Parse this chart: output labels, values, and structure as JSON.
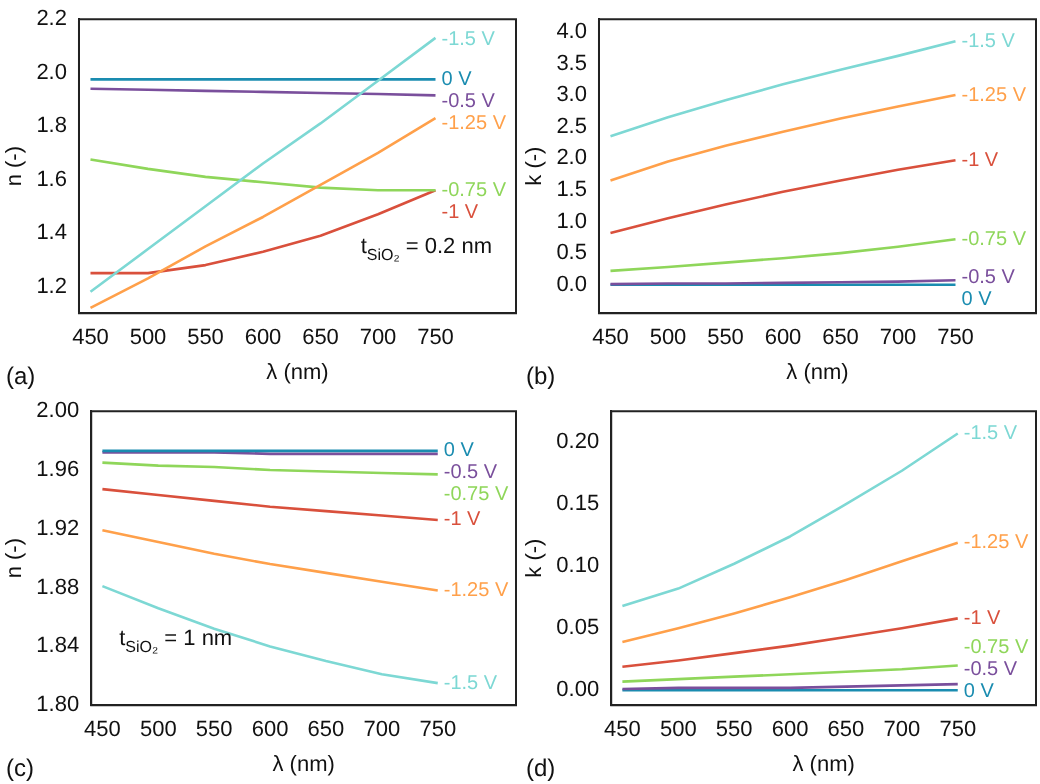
{
  "chart_data": [
    {
      "type": "line",
      "xlabel": "λ (nm)",
      "ylabel": "n (-)",
      "x": [
        450,
        500,
        550,
        600,
        650,
        700,
        750
      ],
      "xlim": [
        440,
        820
      ],
      "xticks": [
        450,
        500,
        550,
        600,
        650,
        700,
        750
      ],
      "ylim": [
        1.1,
        2.2
      ],
      "yticks": [
        1.2,
        1.4,
        1.6,
        1.8,
        {
          "value": 2,
          "label": "2.0"
        },
        2.2
      ],
      "grid": false,
      "legend": false,
      "marker": "none",
      "annotations": [
        "(a)",
        "t$_{SiO₂}$ = 0.2 nm"
      ],
      "series": [
        {
          "name": "-1.5 V",
          "color": "#7dd8d4",
          "values": [
            1.18,
            1.34,
            1.5,
            1.66,
            1.81,
            1.97,
            2.13
          ]
        },
        {
          "name": "0 V",
          "color": "#1a8cb0",
          "values": [
            1.975,
            1.975,
            1.975,
            1.975,
            1.975,
            1.975,
            1.975
          ]
        },
        {
          "name": "-0.5 V",
          "color": "#7a4f9c",
          "values": [
            1.94,
            1.936,
            1.932,
            1.928,
            1.924,
            1.92,
            1.915
          ]
        },
        {
          "name": "-1.25 V",
          "color": "#ffa04a",
          "values": [
            1.12,
            1.23,
            1.35,
            1.46,
            1.58,
            1.7,
            1.83
          ]
        },
        {
          "name": "-0.75 V",
          "color": "#8fd65a",
          "values": [
            1.675,
            1.64,
            1.61,
            1.59,
            1.57,
            1.56,
            1.56
          ]
        },
        {
          "name": "-1 V",
          "color": "#d9503c",
          "values": [
            1.25,
            1.25,
            1.28,
            1.33,
            1.39,
            1.47,
            1.56
          ]
        }
      ]
    },
    {
      "type": "line",
      "xlabel": "λ (nm)",
      "ylabel": "k (-)",
      "x": [
        450,
        500,
        550,
        600,
        650,
        700,
        750
      ],
      "xlim": [
        440,
        820
      ],
      "xticks": [
        450,
        500,
        550,
        600,
        650,
        700,
        750
      ],
      "ylim": [
        -0.45,
        4.2
      ],
      "yticks": [
        {
          "value": 0,
          "label": "0.0"
        },
        0.5,
        {
          "value": 1,
          "label": "1.0"
        },
        1.5,
        {
          "value": 2,
          "label": "2.0"
        },
        2.5,
        {
          "value": 3,
          "label": "3.0"
        },
        3.5,
        {
          "value": 4,
          "label": "4.0"
        }
      ],
      "grid": false,
      "legend": false,
      "marker": "none",
      "annotations": [
        "(b)"
      ],
      "series": [
        {
          "name": "-1.5 V",
          "color": "#7dd8d4",
          "values": [
            2.35,
            2.65,
            2.92,
            3.17,
            3.4,
            3.62,
            3.85
          ]
        },
        {
          "name": "-1.25 V",
          "color": "#ffa04a",
          "values": [
            1.65,
            1.95,
            2.2,
            2.42,
            2.63,
            2.82,
            3.0
          ]
        },
        {
          "name": "-1 V",
          "color": "#d9503c",
          "values": [
            0.82,
            1.05,
            1.27,
            1.47,
            1.65,
            1.82,
            1.97
          ]
        },
        {
          "name": "-0.75 V",
          "color": "#8fd65a",
          "values": [
            0.22,
            0.28,
            0.35,
            0.42,
            0.5,
            0.6,
            0.72
          ]
        },
        {
          "name": "-0.5 V",
          "color": "#7a4f9c",
          "values": [
            0.01,
            0.02,
            0.02,
            0.03,
            0.04,
            0.05,
            0.07
          ]
        },
        {
          "name": "0 V",
          "color": "#1a8cb0",
          "values": [
            0,
            0,
            0,
            0,
            0,
            0,
            0
          ]
        }
      ]
    },
    {
      "type": "line",
      "xlabel": "λ (nm)",
      "ylabel": "n (-)",
      "x": [
        450,
        500,
        550,
        600,
        650,
        700,
        750
      ],
      "xlim": [
        440,
        820
      ],
      "xticks": [
        450,
        500,
        550,
        600,
        650,
        700,
        750
      ],
      "ylim": [
        1.8,
        2.0
      ],
      "yticks": [
        {
          "value": 1.8,
          "label": "1.80"
        },
        1.84,
        1.88,
        1.92,
        1.96,
        {
          "value": 2,
          "label": "2.00"
        }
      ],
      "grid": false,
      "legend": false,
      "marker": "none",
      "annotations": [
        "(c)",
        "t$_{SiO₂}$ = 1 nm"
      ],
      "series": [
        {
          "name": "0 V",
          "color": "#1a8cb0",
          "values": [
            1.973,
            1.973,
            1.973,
            1.973,
            1.973,
            1.973,
            1.973
          ]
        },
        {
          "name": "-0.5 V",
          "color": "#7a4f9c",
          "values": [
            1.972,
            1.972,
            1.972,
            1.971,
            1.971,
            1.971,
            1.971
          ]
        },
        {
          "name": "-0.75 V",
          "color": "#8fd65a",
          "values": [
            1.965,
            1.963,
            1.962,
            1.96,
            1.959,
            1.958,
            1.957
          ]
        },
        {
          "name": "-1 V",
          "color": "#d9503c",
          "values": [
            1.947,
            1.943,
            1.939,
            1.935,
            1.932,
            1.929,
            1.926
          ]
        },
        {
          "name": "-1.25 V",
          "color": "#ffa04a",
          "values": [
            1.919,
            1.911,
            1.903,
            1.896,
            1.89,
            1.884,
            1.878
          ]
        },
        {
          "name": "-1.5 V",
          "color": "#7dd8d4",
          "values": [
            1.881,
            1.866,
            1.852,
            1.84,
            1.83,
            1.821,
            1.815
          ]
        }
      ]
    },
    {
      "type": "line",
      "xlabel": "λ (nm)",
      "ylabel": "k (-)",
      "x": [
        450,
        500,
        550,
        600,
        650,
        700,
        750
      ],
      "xlim": [
        440,
        820
      ],
      "xticks": [
        450,
        500,
        550,
        600,
        650,
        700,
        750
      ],
      "ylim": [
        -0.012,
        0.225
      ],
      "yticks": [
        {
          "value": 0,
          "label": "0.00"
        },
        0.05,
        {
          "value": 0.1,
          "label": "0.10"
        },
        0.15,
        {
          "value": 0.2,
          "label": "0.20"
        }
      ],
      "grid": false,
      "legend": false,
      "marker": "none",
      "annotations": [
        "(d)"
      ],
      "series": [
        {
          "name": "-1.5 V",
          "color": "#7dd8d4",
          "values": [
            0.068,
            0.082,
            0.102,
            0.124,
            0.15,
            0.177,
            0.207
          ]
        },
        {
          "name": "-1.25 V",
          "color": "#ffa04a",
          "values": [
            0.039,
            0.05,
            0.062,
            0.075,
            0.089,
            0.104,
            0.119
          ]
        },
        {
          "name": "-1 V",
          "color": "#d9503c",
          "values": [
            0.019,
            0.024,
            0.03,
            0.036,
            0.043,
            0.05,
            0.058
          ]
        },
        {
          "name": "-0.75 V",
          "color": "#8fd65a",
          "values": [
            0.007,
            0.009,
            0.011,
            0.013,
            0.015,
            0.017,
            0.02
          ]
        },
        {
          "name": "-0.5 V",
          "color": "#7a4f9c",
          "values": [
            0.001,
            0.002,
            0.002,
            0.002,
            0.003,
            0.004,
            0.005
          ]
        },
        {
          "name": "0 V",
          "color": "#1a8cb0",
          "values": [
            0,
            0,
            0,
            0,
            0,
            0,
            0
          ]
        }
      ]
    }
  ]
}
